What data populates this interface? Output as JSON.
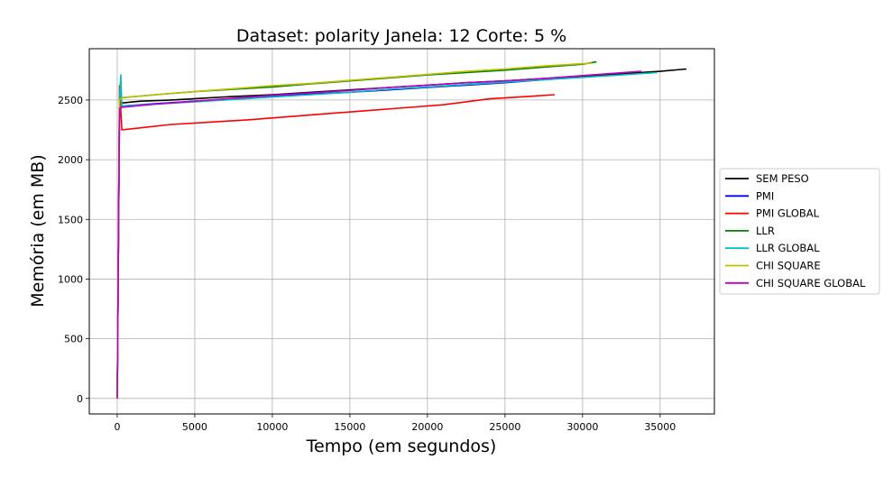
{
  "chart_data": {
    "type": "line",
    "title": "Dataset: polarity Janela: 12 Corte: 5 %",
    "xlabel": "Tempo (em segundos)",
    "ylabel": "Memória (em MB)",
    "xlim": [
      -1800,
      38500
    ],
    "ylim": [
      -130,
      2930
    ],
    "xticks": [
      0,
      5000,
      10000,
      15000,
      20000,
      25000,
      30000,
      35000
    ],
    "yticks": [
      0,
      500,
      1000,
      1500,
      2000,
      2500
    ],
    "grid": true,
    "legend_position": "right",
    "series": [
      {
        "name": "SEM PESO",
        "color": "#000000",
        "x": [
          0,
          150,
          300,
          1500,
          3500,
          5500,
          7500,
          10000,
          12500,
          15000,
          17500,
          20000,
          22500,
          25000,
          27500,
          30000,
          32500,
          35000,
          36700
        ],
        "y": [
          0,
          2450,
          2475,
          2490,
          2500,
          2515,
          2530,
          2545,
          2565,
          2585,
          2605,
          2625,
          2645,
          2660,
          2680,
          2700,
          2720,
          2740,
          2760
        ]
      },
      {
        "name": "PMI",
        "color": "#0000ff",
        "x": [
          0,
          150,
          300,
          2500,
          5000,
          7500,
          10000,
          12500,
          15000,
          17500,
          20000,
          22500,
          25000,
          28500
        ],
        "y": [
          0,
          2440,
          2450,
          2470,
          2490,
          2510,
          2530,
          2550,
          2565,
          2585,
          2605,
          2625,
          2645,
          2680
        ]
      },
      {
        "name": "PMI GLOBAL",
        "color": "#ff0000",
        "x": [
          0,
          150,
          300,
          1000,
          3500,
          6000,
          8500,
          11000,
          13500,
          16000,
          18500,
          21000,
          24000,
          26500,
          28200
        ],
        "y": [
          0,
          2620,
          2250,
          2260,
          2295,
          2315,
          2335,
          2360,
          2385,
          2410,
          2435,
          2460,
          2510,
          2530,
          2545
        ]
      },
      {
        "name": "LLR",
        "color": "#008000",
        "x": [
          0,
          150,
          300,
          2500,
          5000,
          7500,
          10000,
          12500,
          15000,
          17500,
          20000,
          22500,
          25000,
          27500,
          30000,
          30900
        ],
        "y": [
          0,
          2490,
          2520,
          2545,
          2570,
          2590,
          2610,
          2635,
          2660,
          2685,
          2710,
          2730,
          2750,
          2775,
          2800,
          2820
        ]
      },
      {
        "name": "LLR GLOBAL",
        "color": "#00bfbf",
        "x": [
          0,
          150,
          230,
          300,
          2500,
          5000,
          7500,
          10000,
          12500,
          15000,
          17500,
          20000,
          22500,
          25000,
          27500,
          30000,
          32500,
          34800
        ],
        "y": [
          0,
          2500,
          2710,
          2450,
          2465,
          2485,
          2505,
          2525,
          2545,
          2565,
          2590,
          2610,
          2630,
          2650,
          2670,
          2690,
          2710,
          2730
        ]
      },
      {
        "name": "CHI SQUARE",
        "color": "#bfbf00",
        "x": [
          0,
          150,
          300,
          2500,
          5000,
          7500,
          10000,
          12500,
          15000,
          17500,
          20000,
          22500,
          25000,
          27500,
          30600
        ],
        "y": [
          0,
          2500,
          2520,
          2545,
          2570,
          2595,
          2620,
          2640,
          2665,
          2690,
          2715,
          2740,
          2760,
          2785,
          2810
        ]
      },
      {
        "name": "CHI SQUARE GLOBAL",
        "color": "#bf00bf",
        "x": [
          0,
          150,
          300,
          2500,
          5000,
          7500,
          10000,
          12500,
          15000,
          17500,
          20000,
          22500,
          25000,
          27500,
          30000,
          33800
        ],
        "y": [
          0,
          2430,
          2440,
          2465,
          2490,
          2515,
          2540,
          2560,
          2580,
          2605,
          2625,
          2645,
          2660,
          2680,
          2705,
          2740
        ]
      }
    ]
  }
}
